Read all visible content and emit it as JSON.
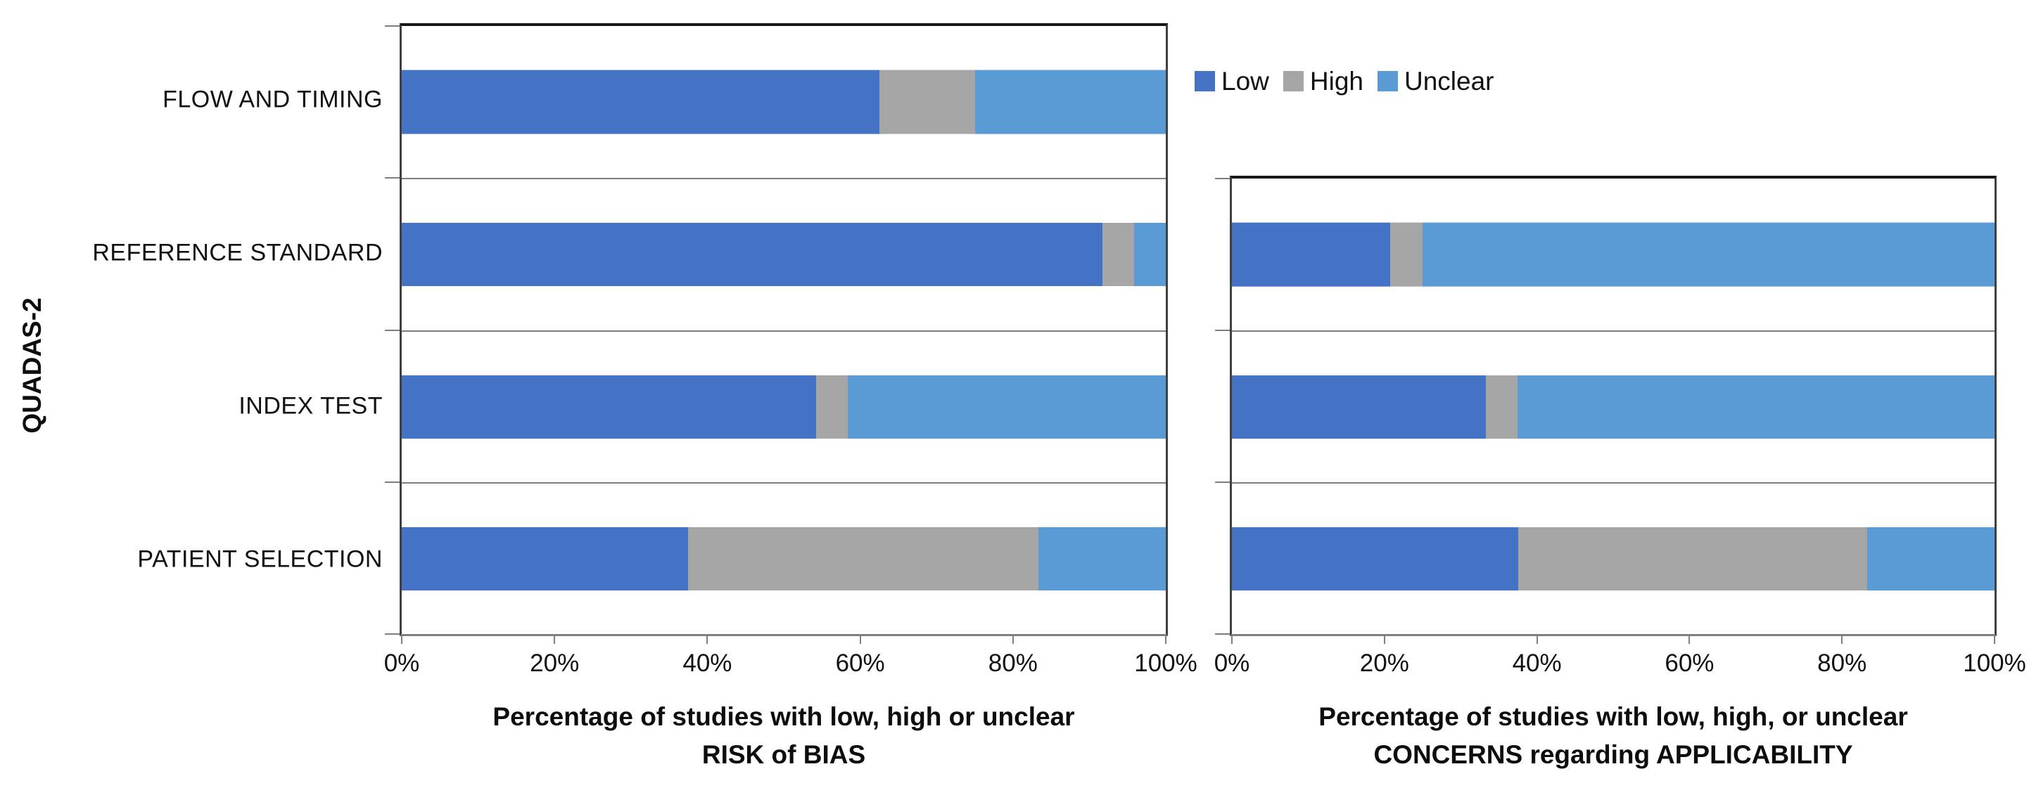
{
  "figure": {
    "y_axis_title": "QUADAS-2"
  },
  "legend": {
    "position": "top-center-right",
    "items": [
      {
        "label": "Low",
        "color": "#4472C4"
      },
      {
        "label": "High",
        "color": "#A6A6A6"
      },
      {
        "label": "Unclear",
        "color": "#5B9BD5"
      }
    ]
  },
  "chart_data": [
    {
      "id": "risk-of-bias",
      "type": "bar",
      "orientation": "horizontal",
      "stacked": true,
      "categories": [
        "FLOW AND TIMING",
        "REFERENCE STANDARD",
        "INDEX TEST",
        "PATIENT SELECTION"
      ],
      "series": [
        {
          "name": "Low",
          "color": "#4472C4",
          "values": [
            62.5,
            91.7,
            54.2,
            37.5
          ]
        },
        {
          "name": "High",
          "color": "#A6A6A6",
          "values": [
            12.5,
            4.2,
            4.2,
            45.8
          ]
        },
        {
          "name": "Unclear",
          "color": "#5B9BD5",
          "values": [
            25.0,
            4.1,
            41.6,
            16.7
          ]
        }
      ],
      "x_ticks": [
        "0%",
        "20%",
        "40%",
        "60%",
        "80%",
        "100%"
      ],
      "xlim": [
        0,
        100
      ],
      "xlabel_lines": [
        "Percentage of studies with low, high or unclear",
        "RISK of BIAS"
      ],
      "grid": "category-separators-only"
    },
    {
      "id": "applicability-concerns",
      "type": "bar",
      "orientation": "horizontal",
      "stacked": true,
      "categories": [
        "REFERENCE STANDARD",
        "INDEX TEST",
        "PATIENT SELECTION"
      ],
      "series": [
        {
          "name": "Low",
          "color": "#4472C4",
          "values": [
            20.8,
            33.3,
            37.5
          ]
        },
        {
          "name": "High",
          "color": "#A6A6A6",
          "values": [
            4.2,
            4.2,
            45.8
          ]
        },
        {
          "name": "Unclear",
          "color": "#5B9BD5",
          "values": [
            75.0,
            62.5,
            16.7
          ]
        }
      ],
      "x_ticks": [
        "0%",
        "20%",
        "40%",
        "60%",
        "80%",
        "100%"
      ],
      "xlim": [
        0,
        100
      ],
      "xlabel_lines": [
        "Percentage of studies with low, high, or unclear",
        "CONCERNS regarding APPLICABILITY"
      ],
      "grid": "category-separators-only"
    }
  ]
}
